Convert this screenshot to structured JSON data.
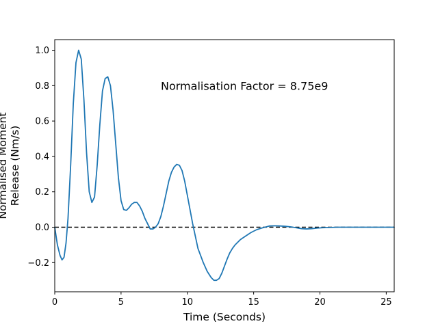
{
  "chart_data": {
    "type": "line",
    "title": "",
    "xlabel": "Time (Seconds)",
    "ylabel_lines": [
      "Normalised Moment",
      "Release (Nm/s)"
    ],
    "xlim": [
      0,
      25.6
    ],
    "ylim": [
      -0.365,
      1.06
    ],
    "xticks": [
      0,
      5,
      10,
      15,
      20,
      25
    ],
    "xtick_labels": [
      "0",
      "5",
      "10",
      "15",
      "20",
      "25"
    ],
    "yticks": [
      -0.2,
      0.0,
      0.2,
      0.4,
      0.6,
      0.8,
      1.0
    ],
    "ytick_labels": [
      "−0.2",
      "0.0",
      "0.2",
      "0.4",
      "0.6",
      "0.8",
      "1.0"
    ],
    "grid": false,
    "annotation": {
      "text": "Normalisation Factor = 8.75e9",
      "x": 8.0,
      "y": 0.8
    },
    "reference_line": {
      "y": 0.0,
      "style": "dashed",
      "color": "#000000"
    },
    "series": [
      {
        "color": "#1f77b4",
        "x": [
          0,
          0.2,
          0.4,
          0.55,
          0.7,
          0.85,
          1.0,
          1.2,
          1.4,
          1.6,
          1.8,
          2.0,
          2.2,
          2.4,
          2.6,
          2.8,
          3.0,
          3.2,
          3.4,
          3.6,
          3.8,
          4.0,
          4.2,
          4.4,
          4.6,
          4.8,
          5.0,
          5.2,
          5.4,
          5.6,
          5.8,
          6.0,
          6.2,
          6.4,
          6.6,
          6.8,
          7.0,
          7.2,
          7.4,
          7.6,
          7.8,
          8.0,
          8.2,
          8.4,
          8.6,
          8.8,
          9.0,
          9.2,
          9.4,
          9.6,
          9.8,
          10.0,
          10.4,
          10.8,
          11.2,
          11.5,
          11.8,
          12.0,
          12.2,
          12.4,
          12.6,
          12.8,
          13.0,
          13.2,
          13.4,
          13.6,
          13.8,
          14.0,
          14.4,
          14.8,
          15.2,
          15.6,
          16.0,
          16.2,
          16.6,
          17.0,
          17.4,
          17.8,
          18.2,
          18.6,
          19.0,
          19.4,
          19.8,
          20.2,
          20.6,
          21.0,
          21.4,
          21.8,
          22.2,
          22.6,
          23.0,
          23.4,
          23.8,
          24.2,
          24.6,
          25.0,
          25.4,
          25.6
        ],
        "y": [
          0.0,
          -0.1,
          -0.16,
          -0.185,
          -0.17,
          -0.09,
          0.05,
          0.35,
          0.7,
          0.93,
          1.0,
          0.95,
          0.72,
          0.42,
          0.2,
          0.14,
          0.17,
          0.35,
          0.58,
          0.77,
          0.84,
          0.85,
          0.8,
          0.66,
          0.47,
          0.28,
          0.15,
          0.1,
          0.095,
          0.11,
          0.13,
          0.14,
          0.14,
          0.12,
          0.09,
          0.05,
          0.02,
          -0.01,
          -0.01,
          0.0,
          0.02,
          0.06,
          0.12,
          0.19,
          0.26,
          0.31,
          0.34,
          0.355,
          0.35,
          0.32,
          0.26,
          0.18,
          0.02,
          -0.12,
          -0.2,
          -0.25,
          -0.285,
          -0.3,
          -0.3,
          -0.29,
          -0.26,
          -0.22,
          -0.18,
          -0.145,
          -0.12,
          -0.1,
          -0.085,
          -0.07,
          -0.05,
          -0.03,
          -0.015,
          -0.005,
          0.003,
          0.007,
          0.008,
          0.007,
          0.005,
          0.002,
          -0.003,
          -0.008,
          -0.01,
          -0.008,
          -0.005,
          -0.003,
          -0.002,
          -0.001,
          0.0,
          0.0,
          0.0,
          0.0,
          0.0,
          0.0,
          0.0,
          0.0,
          0.0,
          0.0,
          0.0,
          0.0
        ]
      }
    ]
  }
}
